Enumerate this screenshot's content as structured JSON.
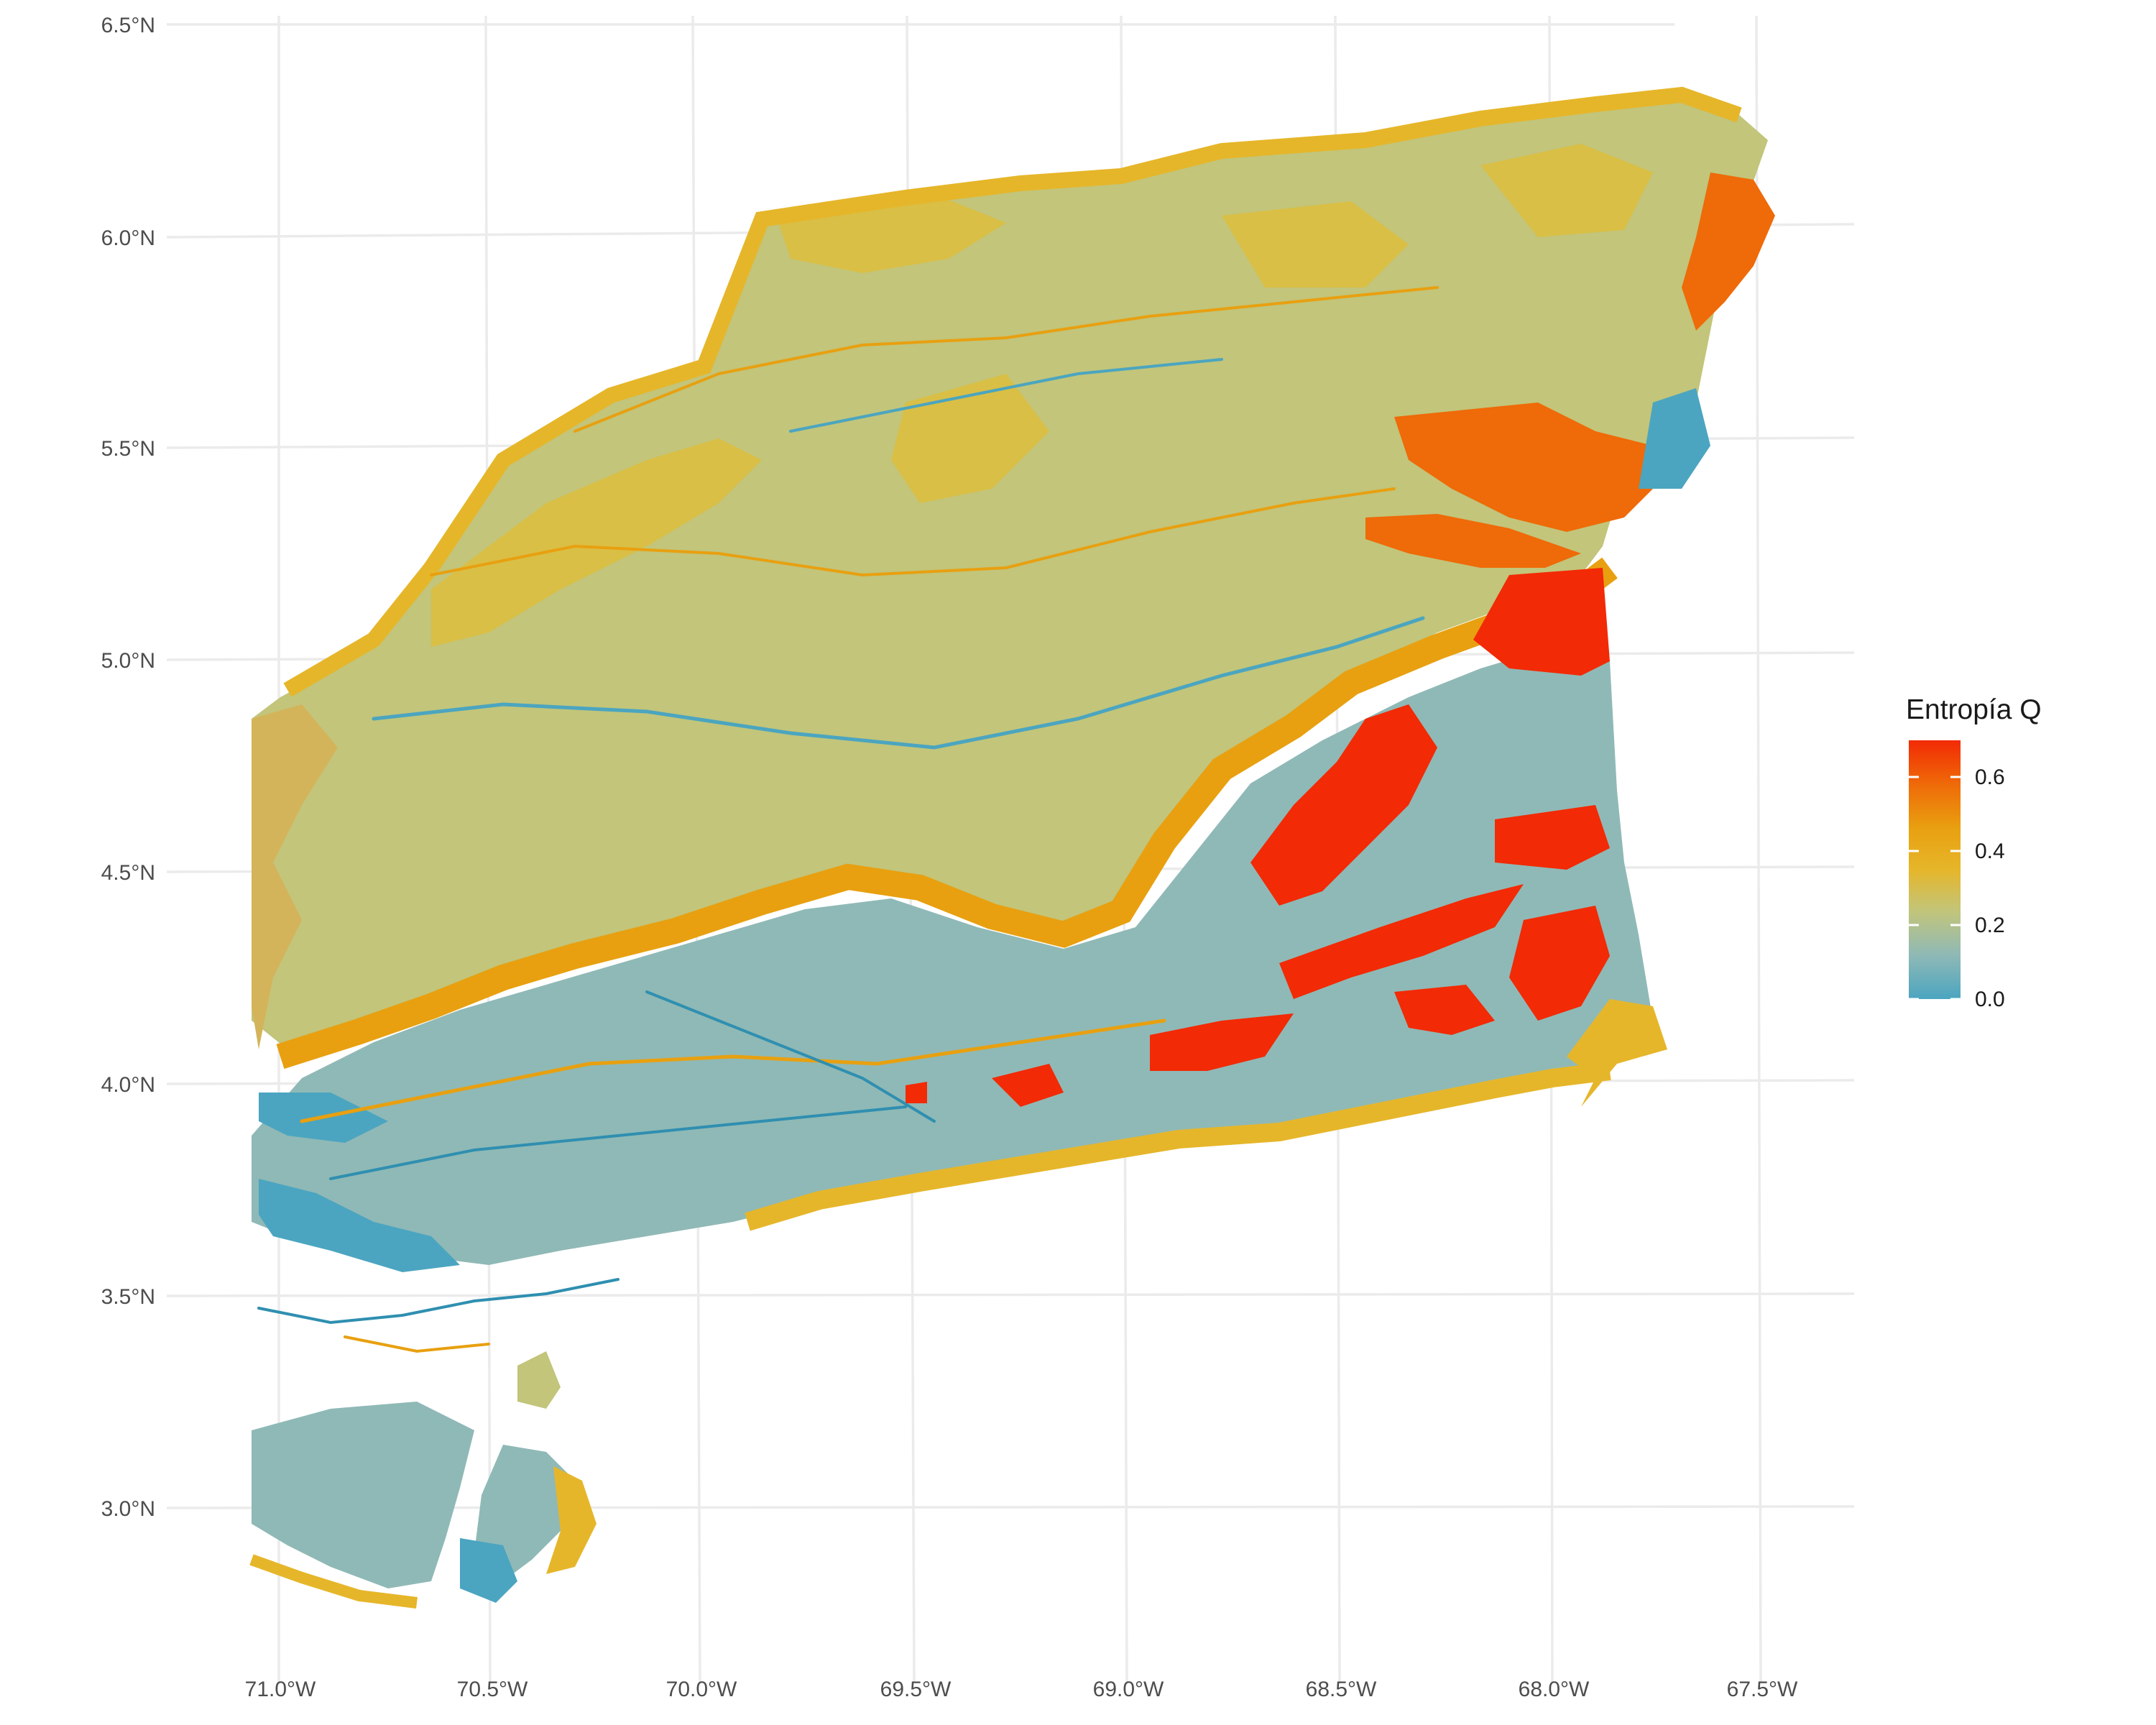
{
  "map": {
    "projection": "geographic",
    "extent": {
      "lon": [
        -71.0,
        -67.5
      ],
      "lat": [
        2.75,
        6.3
      ]
    },
    "x_axis": {
      "ticks": [
        {
          "value": -71.0,
          "label": "71.0°W"
        },
        {
          "value": -70.5,
          "label": "70.5°W"
        },
        {
          "value": -70.0,
          "label": "70.0°W"
        },
        {
          "value": -69.5,
          "label": "69.5°W"
        },
        {
          "value": -69.0,
          "label": "69.0°W"
        },
        {
          "value": -68.5,
          "label": "68.5°W"
        },
        {
          "value": -68.0,
          "label": "68.0°W"
        },
        {
          "value": -67.5,
          "label": "67.5°W"
        }
      ]
    },
    "y_axis": {
      "ticks": [
        {
          "value": 6.5,
          "label": "6.5°N"
        },
        {
          "value": 6.0,
          "label": "6.0°N"
        },
        {
          "value": 5.5,
          "label": "5.5°N"
        },
        {
          "value": 5.0,
          "label": "5.0°N"
        },
        {
          "value": 4.5,
          "label": "4.5°N"
        },
        {
          "value": 4.0,
          "label": "4.0°N"
        },
        {
          "value": 3.5,
          "label": "3.5°N"
        },
        {
          "value": 3.0,
          "label": "3.0°N"
        }
      ]
    },
    "colors": {
      "very_low": "#4ba5c0",
      "low": "#8fb9b6",
      "mid": "#c2c57a",
      "mid_high": "#e6b62a",
      "high": "#e8a010",
      "very_high": "#ef6a08",
      "max": "#f22a05",
      "background": "#ffffff",
      "grid": "#ebebeb"
    }
  },
  "legend": {
    "title": "Entropía Q",
    "scale": {
      "min": 0.0,
      "max": 0.7
    },
    "stops": [
      "#4ba5c0",
      "#8fb9b6",
      "#c2c57a",
      "#e6b62a",
      "#e8a010",
      "#ef6a08",
      "#f22a05"
    ],
    "breaks": [
      {
        "value": 0.0,
        "label": "0.0"
      },
      {
        "value": 0.2,
        "label": "0.2"
      },
      {
        "value": 0.4,
        "label": "0.4"
      },
      {
        "value": 0.6,
        "label": "0.6"
      }
    ]
  }
}
